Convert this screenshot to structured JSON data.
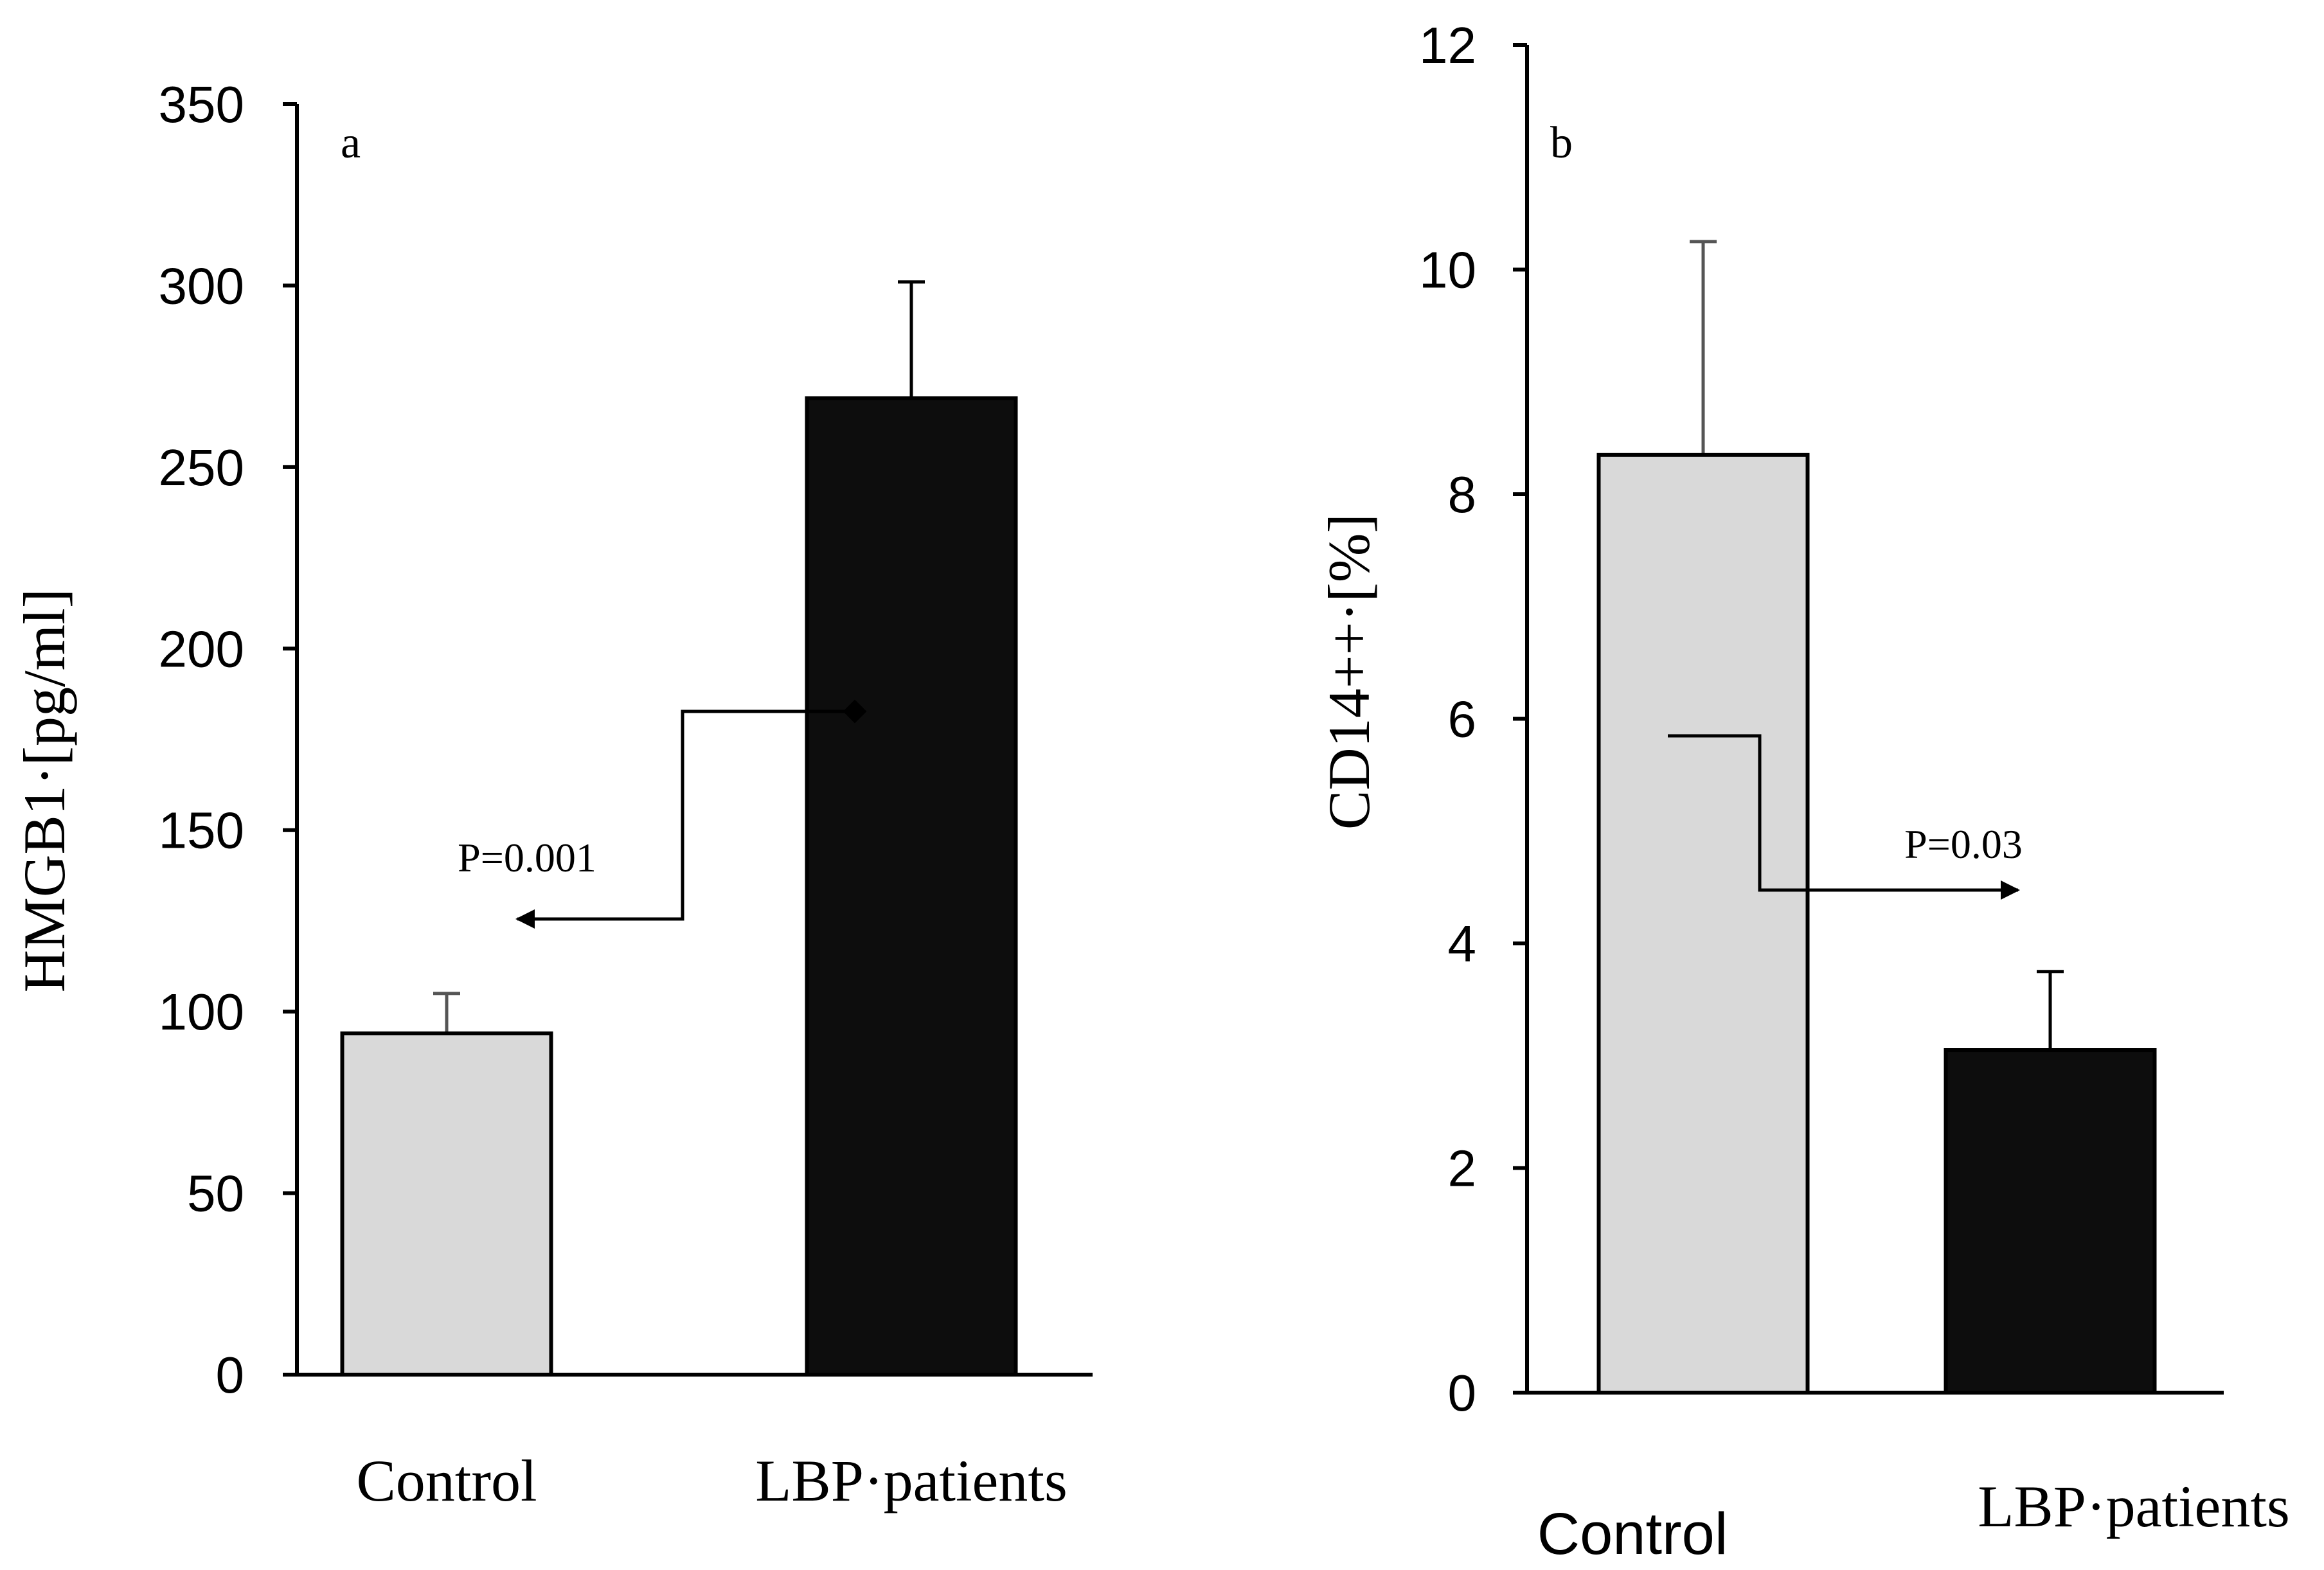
{
  "chart_data": [
    {
      "type": "bar",
      "panel_label": "a",
      "title": "",
      "xlabel": "",
      "ylabel": "HMGB1·[pg/ml]",
      "ylim": [
        0,
        350
      ],
      "yticks": [
        "0",
        "50",
        "100",
        "150",
        "200",
        "250",
        "300",
        "350"
      ],
      "categories": [
        "Control",
        "LBP·patients"
      ],
      "values": [
        94,
        269
      ],
      "errors": [
        11,
        32
      ],
      "colors": [
        "#d9d9d9",
        "#0d0d0d"
      ],
      "annotation": {
        "text": "P=0.001",
        "from_value": 183,
        "to_value": 125,
        "arrow_toward": "Control"
      }
    },
    {
      "type": "bar",
      "panel_label": "b",
      "title": "",
      "xlabel": "",
      "ylabel": "CD14++·[%]",
      "ylim": [
        0,
        12
      ],
      "yticks": [
        "0",
        "2",
        "4",
        "6",
        "8",
        "10",
        "12"
      ],
      "categories": [
        "Control",
        "LBP·patients"
      ],
      "values": [
        8.35,
        3.05
      ],
      "errors": [
        1.9,
        0.7
      ],
      "colors": [
        "#d9d9d9",
        "#0d0d0d"
      ],
      "annotation": {
        "text": "P=0.03",
        "from_value": 5.8,
        "to_value": 4.5,
        "arrow_toward": "LBP·patients"
      }
    }
  ]
}
